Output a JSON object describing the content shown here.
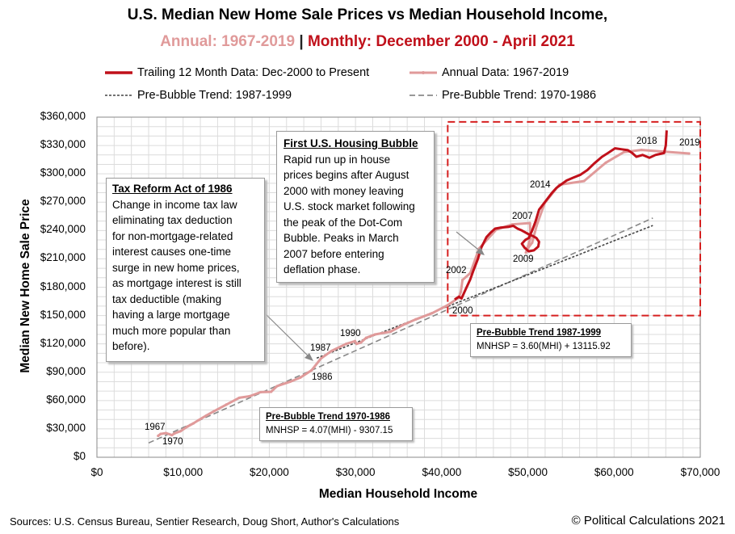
{
  "title": {
    "line1": "U.S. Median New Home Sale Prices vs Median Household Income,",
    "annual": "Annual: 1967-2019",
    "sep": "|",
    "monthly": "Monthly: December 2000 - April 2021"
  },
  "legend": {
    "trailing": "Trailing 12 Month Data: Dec-2000 to Present",
    "annual": "Annual Data: 1967-2019",
    "trend1987": "Pre-Bubble Trend: 1987-1999",
    "trend1970": "Pre-Bubble Trend: 1970-1986"
  },
  "axes": {
    "ylabel": "Median New Home Sale Price",
    "xlabel": "Median Household Income",
    "yticks": [
      "$0",
      "$30,000",
      "$60,000",
      "$90,000",
      "$120,000",
      "$150,000",
      "$180,000",
      "$210,000",
      "$240,000",
      "$270,000",
      "$300,000",
      "$330,000",
      "$360,000"
    ],
    "xticks": [
      "$0",
      "$10,000",
      "$20,000",
      "$30,000",
      "$40,000",
      "$50,000",
      "$60,000",
      "$70,000"
    ]
  },
  "annotations": {
    "tax_reform": {
      "heading": "Tax Reform Act of 1986",
      "lines": [
        "Change in income tax law",
        "eliminating tax deduction",
        "for non-mortgage-related",
        "interest causes one-time",
        "surge in new home prices,",
        "as mortgage interest is still",
        "tax deductible (making",
        "having a large mortgage",
        "much more popular than",
        "before)."
      ]
    },
    "bubble": {
      "heading": "First U.S. Housing Bubble",
      "lines": [
        "Rapid run up in house",
        "prices begins after August",
        "2000 with money leaving",
        "U.S. stock market following",
        "the peak of the Dot-Com",
        "Bubble.  Peaks in March",
        "2007 before entering",
        "deflation phase."
      ]
    },
    "eq1987": {
      "heading": "Pre-Bubble Trend 1987-1999",
      "formula": "MNHSP = 3.60(MHI) + 13115.92"
    },
    "eq1970": {
      "heading": "Pre-Bubble Trend 1970-1986",
      "formula": "MNHSP = 4.07(MHI) - 9307.15"
    }
  },
  "year_labels": {
    "y1967": "1967",
    "y1970": "1970",
    "y1986": "1986",
    "y1987": "1987",
    "y1990": "1990",
    "y2000": "2000",
    "y2002": "2002",
    "y2007": "2007",
    "y2009": "2009",
    "y2014": "2014",
    "y2018": "2018",
    "y2019": "2019"
  },
  "footer": {
    "sources": "Sources: U.S. Census Bureau, Sentier Research, Doug Short, Author's Calculations",
    "copyright": "© Political Calculations 2021"
  },
  "colors": {
    "trailing": "#c0101a",
    "annual": "#e09a9a",
    "trend": "#555555",
    "bubble_box": "#d62020"
  },
  "chart_data": {
    "type": "line",
    "xlim": [
      0,
      70000
    ],
    "ylim": [
      0,
      360000
    ],
    "grid": true,
    "series": [
      {
        "name": "Annual Data: 1967-2019",
        "points": [
          [
            7100,
            22700
          ],
          [
            7400,
            24700
          ],
          [
            8000,
            25600
          ],
          [
            8700,
            23400
          ],
          [
            9000,
            25200
          ],
          [
            9700,
            27600
          ],
          [
            10500,
            32500
          ],
          [
            11200,
            35900
          ],
          [
            11800,
            39300
          ],
          [
            12700,
            44200
          ],
          [
            13600,
            48800
          ],
          [
            15000,
            55700
          ],
          [
            16500,
            62900
          ],
          [
            17700,
            64600
          ],
          [
            19000,
            68900
          ],
          [
            20200,
            69300
          ],
          [
            20900,
            75300
          ],
          [
            22400,
            79900
          ],
          [
            23600,
            84300
          ],
          [
            24900,
            92000
          ],
          [
            25986,
            104500
          ],
          [
            27225,
            112500
          ],
          [
            28906,
            120000
          ],
          [
            29943,
            122900
          ],
          [
            30126,
            120000
          ],
          [
            30636,
            121500
          ],
          [
            31241,
            126500
          ],
          [
            32264,
            130000
          ],
          [
            34076,
            133000
          ],
          [
            35492,
            140000
          ],
          [
            37005,
            146000
          ],
          [
            38885,
            152500
          ],
          [
            40696,
            161000
          ],
          [
            41990,
            169000
          ],
          [
            42228,
            175200
          ],
          [
            42409,
            187600
          ],
          [
            43318,
            195000
          ],
          [
            44334,
            221000
          ],
          [
            46326,
            240900
          ],
          [
            48201,
            246500
          ],
          [
            50233,
            247900
          ],
          [
            50303,
            232100
          ],
          [
            49777,
            216700
          ],
          [
            50054,
            221800
          ],
          [
            50502,
            227200
          ],
          [
            51017,
            245200
          ],
          [
            51939,
            268900
          ],
          [
            53657,
            288500
          ],
          [
            56516,
            292400
          ],
          [
            59039,
            311800
          ],
          [
            61136,
            323000
          ],
          [
            63179,
            325300
          ],
          [
            68703,
            321500
          ]
        ]
      },
      {
        "name": "Trailing 12 Month Data: Dec-2000 to Present",
        "points": [
          [
            41500,
            167000
          ],
          [
            42000,
            170000
          ],
          [
            42300,
            168000
          ],
          [
            42800,
            178000
          ],
          [
            43300,
            188000
          ],
          [
            43700,
            198000
          ],
          [
            44200,
            210000
          ],
          [
            44600,
            222000
          ],
          [
            45200,
            233000
          ],
          [
            45700,
            238000
          ],
          [
            46200,
            242000
          ],
          [
            46800,
            243000
          ],
          [
            47300,
            243500
          ],
          [
            47800,
            244000
          ],
          [
            48300,
            245000
          ],
          [
            48800,
            242000
          ],
          [
            49300,
            240000
          ],
          [
            49700,
            238000
          ],
          [
            50100,
            236000
          ],
          [
            50600,
            234000
          ],
          [
            51000,
            232000
          ],
          [
            51300,
            228000
          ],
          [
            51200,
            223000
          ],
          [
            50700,
            219000
          ],
          [
            50100,
            218000
          ],
          [
            49600,
            222000
          ],
          [
            49300,
            226000
          ],
          [
            49700,
            230000
          ],
          [
            50100,
            232000
          ],
          [
            50500,
            240000
          ],
          [
            50900,
            250000
          ],
          [
            51300,
            262000
          ],
          [
            51800,
            268000
          ],
          [
            52300,
            274000
          ],
          [
            52800,
            280000
          ],
          [
            53300,
            285000
          ],
          [
            53900,
            289000
          ],
          [
            54500,
            293000
          ],
          [
            55300,
            296000
          ],
          [
            56100,
            299000
          ],
          [
            56900,
            304000
          ],
          [
            57700,
            311000
          ],
          [
            58600,
            318000
          ],
          [
            59300,
            322000
          ],
          [
            60100,
            327000
          ],
          [
            60900,
            326000
          ],
          [
            61600,
            325000
          ],
          [
            62100,
            322000
          ],
          [
            62600,
            318000
          ],
          [
            63300,
            320000
          ],
          [
            64100,
            317000
          ],
          [
            64800,
            320000
          ],
          [
            65300,
            321000
          ],
          [
            65800,
            322000
          ],
          [
            66000,
            330000
          ],
          [
            66100,
            346000
          ]
        ]
      },
      {
        "name": "Pre-Bubble Trend: 1987-1999",
        "points": [
          [
            25500,
            104913
          ],
          [
            64500,
            245316
          ]
        ]
      },
      {
        "name": "Pre-Bubble Trend: 1970-1986",
        "points": [
          [
            6000,
            15113
          ],
          [
            64500,
            253208
          ]
        ]
      }
    ],
    "highlight_region": {
      "x": [
        40700,
        70000
      ],
      "y": [
        150000,
        355000
      ]
    }
  }
}
